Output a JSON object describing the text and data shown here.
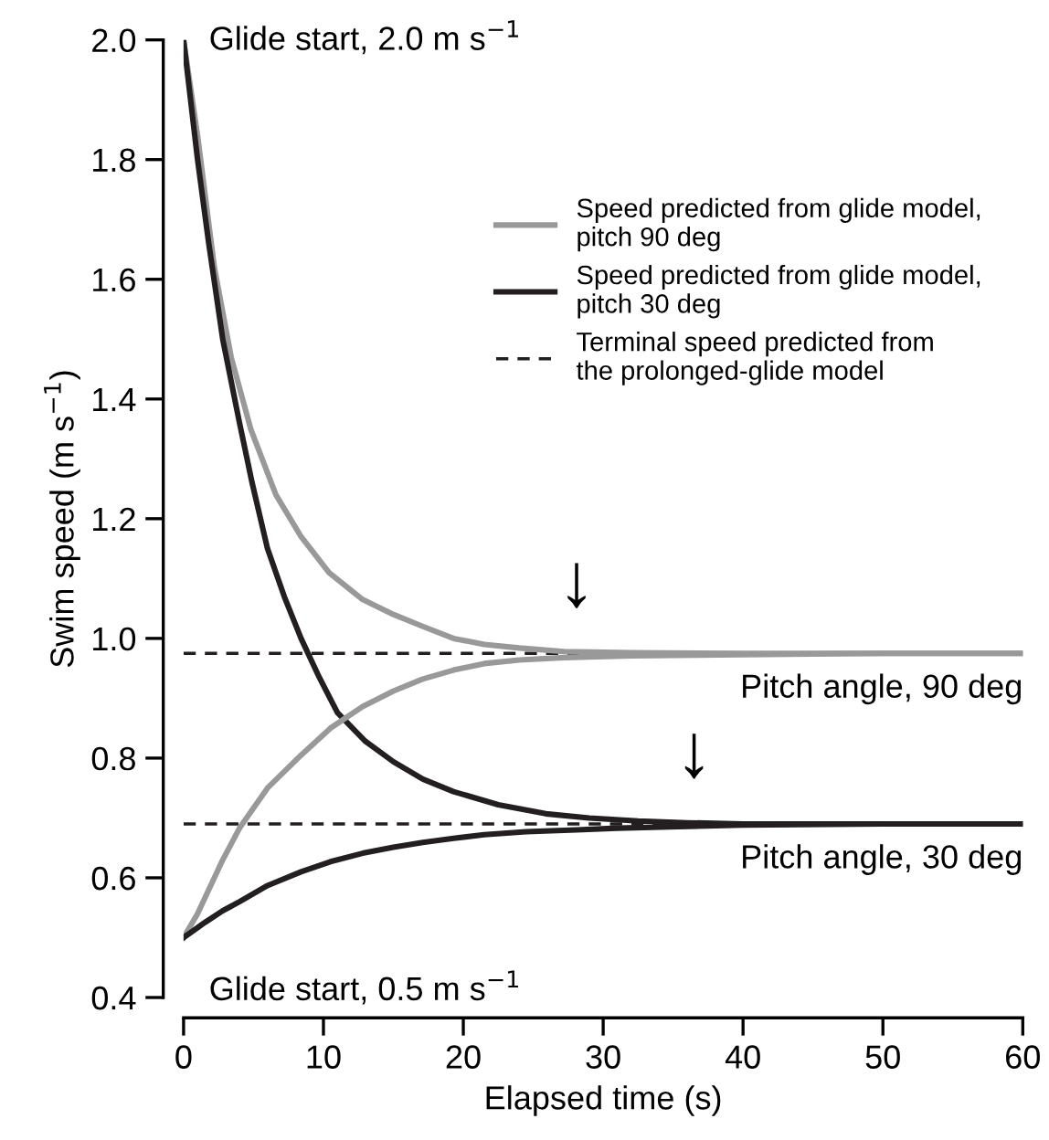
{
  "chart_data": {
    "type": "line",
    "xlabel": "Elapsed time (s)",
    "ylabel": "Swim speed (m s$^{−1}$)",
    "xlim": [
      0,
      60
    ],
    "ylim": [
      0.4,
      2.0
    ],
    "xticks": [
      0,
      10,
      20,
      30,
      40,
      50,
      60
    ],
    "yticks": [
      {
        "value": 0.4,
        "label": "0.4"
      },
      {
        "value": 0.6,
        "label": "0.6"
      },
      {
        "value": 0.8,
        "label": "0.8"
      },
      {
        "value": 1.0,
        "label": "1.0"
      },
      {
        "value": 1.2,
        "label": "1.2"
      },
      {
        "value": 1.4,
        "label": "1.4"
      },
      {
        "value": 1.6,
        "label": "1.6"
      },
      {
        "value": 1.8,
        "label": "1.8"
      },
      {
        "value": 2.0,
        "label": "2.0"
      }
    ],
    "grid": false,
    "legend": "top right",
    "line_style": "solid",
    "marker": "none",
    "series": [
      {
        "name": "Speed predicted from glide model, pitch 90 deg",
        "color": "#999999",
        "x": [
          0,
          1,
          2.2,
          3.4,
          4.8,
          6.6,
          8.4,
          10.4,
          12.8,
          15,
          17.1,
          19.3,
          21.5,
          24,
          27.2,
          32,
          40,
          50,
          60
        ],
        "values": [
          2.0,
          1.84,
          1.62,
          1.47,
          1.35,
          1.24,
          1.17,
          1.11,
          1.065,
          1.04,
          1.02,
          1.0,
          0.99,
          0.984,
          0.978,
          0.976,
          0.975,
          0.975,
          0.975
        ]
      },
      {
        "name": "Speed predicted from glide model, pitch 30 deg",
        "color": "#231f20",
        "x": [
          0,
          1,
          1.8,
          2.8,
          4,
          4.9,
          6,
          7.2,
          8.4,
          9.7,
          11,
          13,
          15,
          17.1,
          19.3,
          22.5,
          25.9,
          29,
          32.5,
          36,
          40,
          50,
          60
        ],
        "values": [
          2.0,
          1.8,
          1.66,
          1.5,
          1.36,
          1.26,
          1.15,
          1.07,
          1.0,
          0.935,
          0.876,
          0.828,
          0.794,
          0.765,
          0.744,
          0.722,
          0.707,
          0.7,
          0.695,
          0.692,
          0.69,
          0.69,
          0.69
        ]
      },
      {
        "color": "#999999",
        "x": [
          0,
          1,
          1.8,
          2.8,
          4,
          6,
          8.4,
          10.5,
          12.8,
          15,
          17.1,
          19.3,
          21.5,
          24,
          27.2,
          32,
          40,
          50,
          60
        ],
        "values": [
          0.5,
          0.54,
          0.58,
          0.63,
          0.683,
          0.75,
          0.805,
          0.85,
          0.886,
          0.912,
          0.932,
          0.947,
          0.958,
          0.964,
          0.968,
          0.971,
          0.973,
          0.975,
          0.975
        ]
      },
      {
        "color": "#231f20",
        "x": [
          0,
          1.5,
          2.8,
          4,
          6,
          8.4,
          10.5,
          12.8,
          15,
          17.1,
          19.3,
          21.5,
          24.5,
          28.1,
          31,
          34.7,
          40,
          50,
          60
        ],
        "values": [
          0.5,
          0.525,
          0.545,
          0.56,
          0.587,
          0.61,
          0.627,
          0.641,
          0.651,
          0.659,
          0.666,
          0.672,
          0.677,
          0.68,
          0.683,
          0.685,
          0.688,
          0.69,
          0.69
        ]
      }
    ],
    "ref_lines": [
      {
        "axis": "y",
        "value": 0.975,
        "label": "Terminal speed predicted from the prolonged-glide model",
        "color": "#231f20",
        "line_style": "dashed"
      },
      {
        "axis": "y",
        "value": 0.69,
        "color": "#231f20",
        "line_style": "dashed"
      }
    ],
    "annotations": [
      {
        "text": "Glide start, 2.0 m s$^{−1}$",
        "x": 0,
        "y": 2.0
      },
      {
        "text": "Glide start, 0.5 m s$^{−1}$",
        "x": 0,
        "y": 0.5
      },
      {
        "text": "Pitch angle, 90 deg",
        "x": 60,
        "y": 0.975
      },
      {
        "text": "Pitch angle, 30 deg",
        "x": 60,
        "y": 0.69
      },
      {
        "text": "↓",
        "x": 28.1,
        "y": 0.977
      },
      {
        "text": "↓",
        "x": 36.5,
        "y": 0.692
      }
    ]
  }
}
